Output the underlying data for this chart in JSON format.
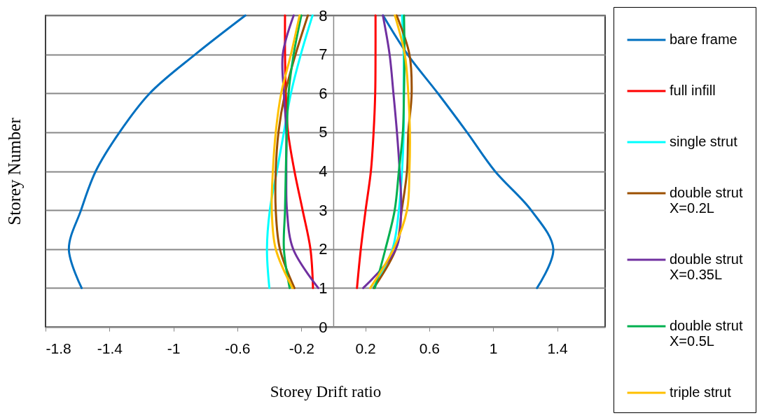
{
  "chart_data": {
    "type": "line",
    "xlabel": "Storey Drift ratio",
    "ylabel": "Storey Number",
    "xlim": [
      -1.8,
      1.7
    ],
    "xticks": [
      -1.8,
      -1.4,
      -1,
      -0.6,
      -0.2,
      0.2,
      0.6,
      1,
      1.4
    ],
    "ylim": [
      0,
      8
    ],
    "yticks": [
      0,
      1,
      2,
      3,
      4,
      5,
      6,
      7,
      8
    ],
    "grid": "y",
    "legend": "right",
    "line_style": "solid",
    "marker": "none",
    "series": [
      {
        "name": "bare frame",
        "color": "#0070c0",
        "x": [
          -1.574,
          -1.654,
          -1.578,
          -1.486,
          -1.337,
          -1.148,
          -0.863,
          -0.55
        ],
        "values": [
          1,
          2,
          3,
          4,
          5,
          6,
          7,
          8
        ]
      },
      {
        "color": "#0070c0",
        "x": [
          1.274,
          1.376,
          1.237,
          1.011,
          0.836,
          0.654,
          0.464,
          0.311
        ],
        "values": [
          1,
          2,
          3,
          4,
          5,
          6,
          7,
          8
        ]
      },
      {
        "name": "full infill",
        "color": "#ff0000",
        "x": [
          -0.127,
          -0.143,
          -0.192,
          -0.243,
          -0.283,
          -0.297,
          -0.302,
          -0.302
        ],
        "values": [
          1,
          2,
          3,
          4,
          5,
          6,
          7,
          8
        ]
      },
      {
        "color": "#ff0000",
        "x": [
          0.148,
          0.172,
          0.202,
          0.235,
          0.252,
          0.262,
          0.264,
          0.264
        ],
        "values": [
          1,
          2,
          3,
          4,
          5,
          6,
          7,
          8
        ]
      },
      {
        "name": "single strut",
        "color": "#00ffff",
        "x": [
          -0.4,
          -0.415,
          -0.397,
          -0.353,
          -0.309,
          -0.265,
          -0.203,
          -0.13
        ],
        "values": [
          1,
          2,
          3,
          4,
          5,
          6,
          7,
          8
        ]
      },
      {
        "color": "#00ffff",
        "x": [
          0.25,
          0.37,
          0.41,
          0.43,
          0.44,
          0.44,
          0.44,
          0.43
        ],
        "values": [
          1,
          2,
          3,
          4,
          5,
          6,
          7,
          8
        ]
      },
      {
        "name": "double strut\nX=0.2L",
        "color": "#9c5000",
        "x": [
          -0.243,
          -0.334,
          -0.36,
          -0.36,
          -0.343,
          -0.302,
          -0.236,
          -0.159
        ],
        "values": [
          1,
          2,
          3,
          4,
          5,
          6,
          7,
          8
        ]
      },
      {
        "color": "#9c5000",
        "x": [
          0.253,
          0.391,
          0.428,
          0.461,
          0.469,
          0.49,
          0.476,
          0.396
        ],
        "values": [
          1,
          2,
          3,
          4,
          5,
          6,
          7,
          8
        ]
      },
      {
        "name": "double strut\nX=0.35L",
        "color": "#7030a0",
        "x": [
          -0.094,
          -0.251,
          -0.29,
          -0.294,
          -0.294,
          -0.309,
          -0.316,
          -0.248
        ],
        "values": [
          1,
          2,
          3,
          4,
          5,
          6,
          7,
          8
        ]
      },
      {
        "color": "#7030a0",
        "x": [
          0.187,
          0.391,
          0.424,
          0.415,
          0.398,
          0.376,
          0.352,
          0.31
        ],
        "values": [
          1,
          2,
          3,
          4,
          5,
          6,
          7,
          8
        ]
      },
      {
        "name": "double strut\nX=0.5L",
        "color": "#00b050",
        "x": [
          -0.273,
          -0.309,
          -0.302,
          -0.297,
          -0.291,
          -0.28,
          -0.248,
          -0.2
        ],
        "values": [
          1,
          2,
          3,
          4,
          5,
          6,
          7,
          8
        ]
      },
      {
        "color": "#00b050",
        "x": [
          0.26,
          0.326,
          0.384,
          0.41,
          0.435,
          0.442,
          0.445,
          0.442
        ],
        "values": [
          1,
          2,
          3,
          4,
          5,
          6,
          7,
          8
        ]
      },
      {
        "name": "triple strut",
        "color": "#ffc000",
        "x": [
          -0.255,
          -0.36,
          -0.385,
          -0.378,
          -0.36,
          -0.326,
          -0.265,
          -0.211
        ],
        "values": [
          1,
          2,
          3,
          4,
          5,
          6,
          7,
          8
        ]
      },
      {
        "color": "#ffc000",
        "x": [
          0.231,
          0.376,
          0.461,
          0.476,
          0.479,
          0.469,
          0.447,
          0.385
        ],
        "values": [
          1,
          2,
          3,
          4,
          5,
          6,
          7,
          8
        ]
      }
    ]
  }
}
